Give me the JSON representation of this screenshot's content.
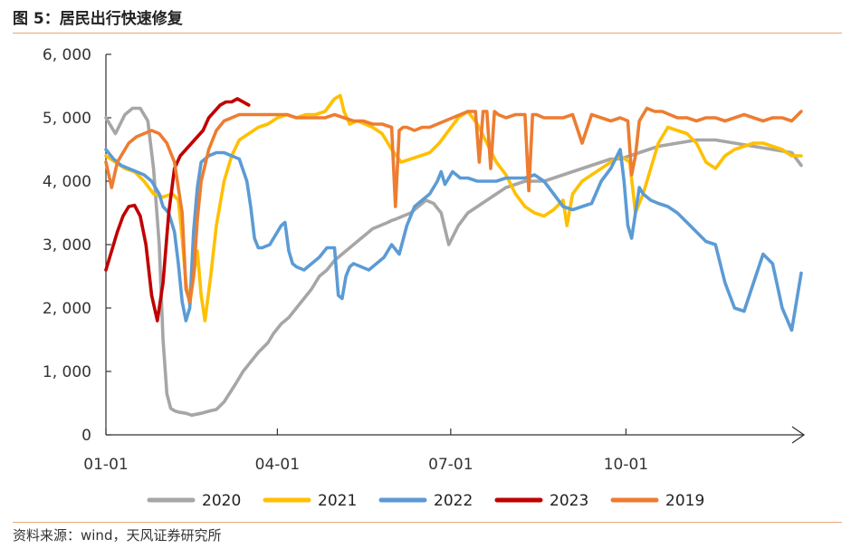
{
  "header": {
    "title": "图 5：居民出行快速修复"
  },
  "footer": {
    "source": "资料来源：wind，天风证券研究所"
  },
  "chart_data": {
    "type": "line",
    "ylim": [
      0,
      6000
    ],
    "yticks": [
      0,
      1000,
      2000,
      3000,
      4000,
      5000,
      6000
    ],
    "ytick_labels": [
      "0",
      "1, 000",
      "2, 000",
      "3, 000",
      "4, 000",
      "5, 000",
      "6, 000"
    ],
    "xlim": [
      0,
      365
    ],
    "xticks": [
      0,
      90,
      181,
      273
    ],
    "xtick_labels": [
      "01-01",
      "04-01",
      "07-01",
      "10-01"
    ],
    "legend_position": "bottom",
    "series": [
      {
        "name": "2020",
        "color": "#a6a6a6",
        "x": [
          0,
          5,
          10,
          14,
          18,
          22,
          25,
          28,
          30,
          32,
          34,
          36,
          38,
          42,
          45,
          50,
          55,
          58,
          62,
          68,
          72,
          76,
          80,
          85,
          88,
          92,
          96,
          100,
          104,
          108,
          112,
          116,
          120,
          124,
          128,
          132,
          136,
          140,
          144,
          148,
          150,
          152,
          156,
          160,
          164,
          168,
          172,
          176,
          180,
          185,
          190,
          195,
          200,
          205,
          210,
          215,
          220,
          225,
          230,
          235,
          240,
          245,
          250,
          255,
          260,
          265,
          270,
          275,
          280,
          285,
          290,
          300,
          310,
          320,
          330,
          340,
          350,
          360,
          365
        ],
        "y": [
          5000,
          4750,
          5050,
          5150,
          5150,
          4950,
          4200,
          3000,
          1500,
          650,
          420,
          380,
          360,
          340,
          310,
          340,
          380,
          400,
          520,
          800,
          1000,
          1150,
          1300,
          1450,
          1600,
          1750,
          1850,
          2000,
          2150,
          2300,
          2500,
          2600,
          2750,
          2850,
          2950,
          3050,
          3150,
          3250,
          3300,
          3350,
          3380,
          3400,
          3450,
          3500,
          3600,
          3700,
          3650,
          3500,
          3000,
          3300,
          3500,
          3600,
          3700,
          3800,
          3900,
          3950,
          4000,
          4000,
          4000,
          4050,
          4100,
          4150,
          4200,
          4250,
          4300,
          4350,
          4350,
          4400,
          4450,
          4500,
          4550,
          4600,
          4650,
          4650,
          4600,
          4550,
          4500,
          4450,
          4250
        ]
      },
      {
        "name": "2021",
        "color": "#ffc000",
        "x": [
          0,
          5,
          10,
          15,
          20,
          25,
          30,
          35,
          38,
          40,
          42,
          44,
          46,
          48,
          50,
          52,
          55,
          58,
          62,
          66,
          70,
          75,
          80,
          85,
          90,
          95,
          100,
          105,
          110,
          115,
          120,
          123,
          125,
          128,
          132,
          136,
          140,
          145,
          150,
          155,
          160,
          165,
          170,
          175,
          180,
          185,
          190,
          195,
          200,
          205,
          210,
          215,
          220,
          225,
          230,
          235,
          240,
          242,
          245,
          250,
          255,
          260,
          265,
          270,
          275,
          278,
          282,
          286,
          290,
          295,
          300,
          305,
          310,
          315,
          320,
          325,
          330,
          335,
          340,
          345,
          350,
          355,
          360,
          365
        ],
        "y": [
          4400,
          4300,
          4200,
          4150,
          4000,
          3800,
          3750,
          3800,
          3700,
          3100,
          2400,
          2050,
          2500,
          2900,
          2200,
          1800,
          2500,
          3300,
          4000,
          4400,
          4650,
          4750,
          4850,
          4900,
          5000,
          5050,
          5000,
          5050,
          5050,
          5100,
          5300,
          5350,
          5100,
          4900,
          4950,
          4900,
          4850,
          4750,
          4500,
          4300,
          4350,
          4400,
          4450,
          4600,
          4800,
          5000,
          5100,
          4900,
          4600,
          4300,
          4100,
          3800,
          3600,
          3500,
          3450,
          3550,
          3700,
          3300,
          3800,
          4000,
          4100,
          4200,
          4300,
          4400,
          4300,
          3500,
          3800,
          4200,
          4600,
          4850,
          4800,
          4750,
          4600,
          4300,
          4200,
          4400,
          4500,
          4550,
          4600,
          4600,
          4550,
          4500,
          4400,
          4400
        ]
      },
      {
        "name": "2022",
        "color": "#5b9bd5",
        "x": [
          0,
          4,
          8,
          12,
          16,
          20,
          24,
          28,
          30,
          33,
          36,
          38,
          40,
          42,
          44,
          46,
          48,
          50,
          54,
          58,
          62,
          66,
          70,
          74,
          76,
          78,
          80,
          82,
          86,
          90,
          92,
          94,
          96,
          98,
          100,
          104,
          108,
          112,
          116,
          120,
          122,
          124,
          126,
          128,
          130,
          134,
          138,
          142,
          146,
          150,
          154,
          158,
          162,
          166,
          170,
          174,
          176,
          178,
          180,
          182,
          184,
          186,
          190,
          195,
          200,
          205,
          210,
          215,
          220,
          225,
          230,
          235,
          240,
          245,
          250,
          255,
          260,
          265,
          270,
          272,
          274,
          276,
          278,
          280,
          282,
          286,
          290,
          295,
          300,
          305,
          310,
          315,
          320,
          325,
          330,
          335,
          340,
          345,
          350,
          355,
          360,
          365
        ],
        "y": [
          4500,
          4350,
          4250,
          4200,
          4150,
          4100,
          4000,
          3800,
          3600,
          3500,
          3200,
          2700,
          2100,
          1800,
          2000,
          3200,
          3900,
          4300,
          4400,
          4450,
          4450,
          4400,
          4350,
          4000,
          3600,
          3100,
          2950,
          2950,
          3000,
          3200,
          3300,
          3350,
          2900,
          2700,
          2650,
          2600,
          2700,
          2800,
          2950,
          2950,
          2200,
          2150,
          2500,
          2650,
          2700,
          2650,
          2600,
          2700,
          2800,
          3000,
          2850,
          3300,
          3600,
          3700,
          3800,
          4000,
          4150,
          3950,
          4050,
          4150,
          4100,
          4050,
          4050,
          4000,
          4000,
          4000,
          4050,
          4050,
          4050,
          4100,
          4000,
          3800,
          3600,
          3550,
          3600,
          3650,
          4000,
          4200,
          4500,
          4000,
          3300,
          3100,
          3500,
          3900,
          3800,
          3700,
          3650,
          3600,
          3500,
          3350,
          3200,
          3050,
          3000,
          2400,
          2000,
          1950,
          2400,
          2850,
          2700,
          2000,
          1650,
          2550
        ]
      },
      {
        "name": "2023",
        "color": "#c00000",
        "x": [
          0,
          3,
          6,
          9,
          12,
          15,
          18,
          21,
          24,
          27,
          30,
          33,
          36,
          39,
          42,
          45,
          48,
          51,
          54,
          57,
          60,
          63,
          66,
          69,
          72,
          75
        ],
        "y": [
          2600,
          2900,
          3200,
          3450,
          3600,
          3620,
          3450,
          3000,
          2200,
          1800,
          2400,
          3500,
          4200,
          4400,
          4500,
          4600,
          4700,
          4800,
          5000,
          5100,
          5200,
          5250,
          5250,
          5300,
          5250,
          5200
        ]
      },
      {
        "name": "2019",
        "color": "#ed7d31",
        "x": [
          0,
          3,
          6,
          9,
          12,
          16,
          20,
          24,
          28,
          32,
          36,
          40,
          42,
          44,
          46,
          48,
          50,
          54,
          58,
          62,
          66,
          70,
          74,
          78,
          82,
          86,
          90,
          95,
          100,
          105,
          110,
          115,
          120,
          125,
          130,
          135,
          140,
          145,
          150,
          152,
          154,
          156,
          158,
          162,
          166,
          170,
          174,
          178,
          182,
          186,
          190,
          194,
          196,
          198,
          200,
          202,
          204,
          206,
          210,
          215,
          220,
          222,
          224,
          226,
          230,
          235,
          240,
          245,
          250,
          255,
          260,
          265,
          270,
          274,
          276,
          278,
          280,
          284,
          288,
          292,
          296,
          300,
          305,
          310,
          315,
          320,
          325,
          330,
          335,
          340,
          345,
          350,
          355,
          360,
          365
        ],
        "y": [
          4300,
          3900,
          4300,
          4450,
          4600,
          4700,
          4750,
          4800,
          4750,
          4600,
          4300,
          3500,
          2300,
          2100,
          2500,
          3400,
          4000,
          4500,
          4800,
          4950,
          5000,
          5050,
          5050,
          5050,
          5050,
          5050,
          5050,
          5050,
          5000,
          5000,
          5000,
          5000,
          5050,
          5000,
          4950,
          4950,
          4900,
          4900,
          4850,
          3600,
          4800,
          4850,
          4850,
          4800,
          4850,
          4850,
          4900,
          4950,
          5000,
          5050,
          5100,
          5100,
          4300,
          5100,
          5100,
          4200,
          5100,
          5050,
          5000,
          5050,
          5050,
          3850,
          5050,
          5050,
          5000,
          5000,
          5000,
          5050,
          4600,
          5050,
          5000,
          4950,
          5000,
          4950,
          4100,
          4400,
          4950,
          5150,
          5100,
          5100,
          5050,
          5000,
          5000,
          4950,
          5000,
          5000,
          4950,
          5000,
          5050,
          5000,
          4950,
          5000,
          5000,
          4950,
          5100
        ]
      }
    ]
  }
}
